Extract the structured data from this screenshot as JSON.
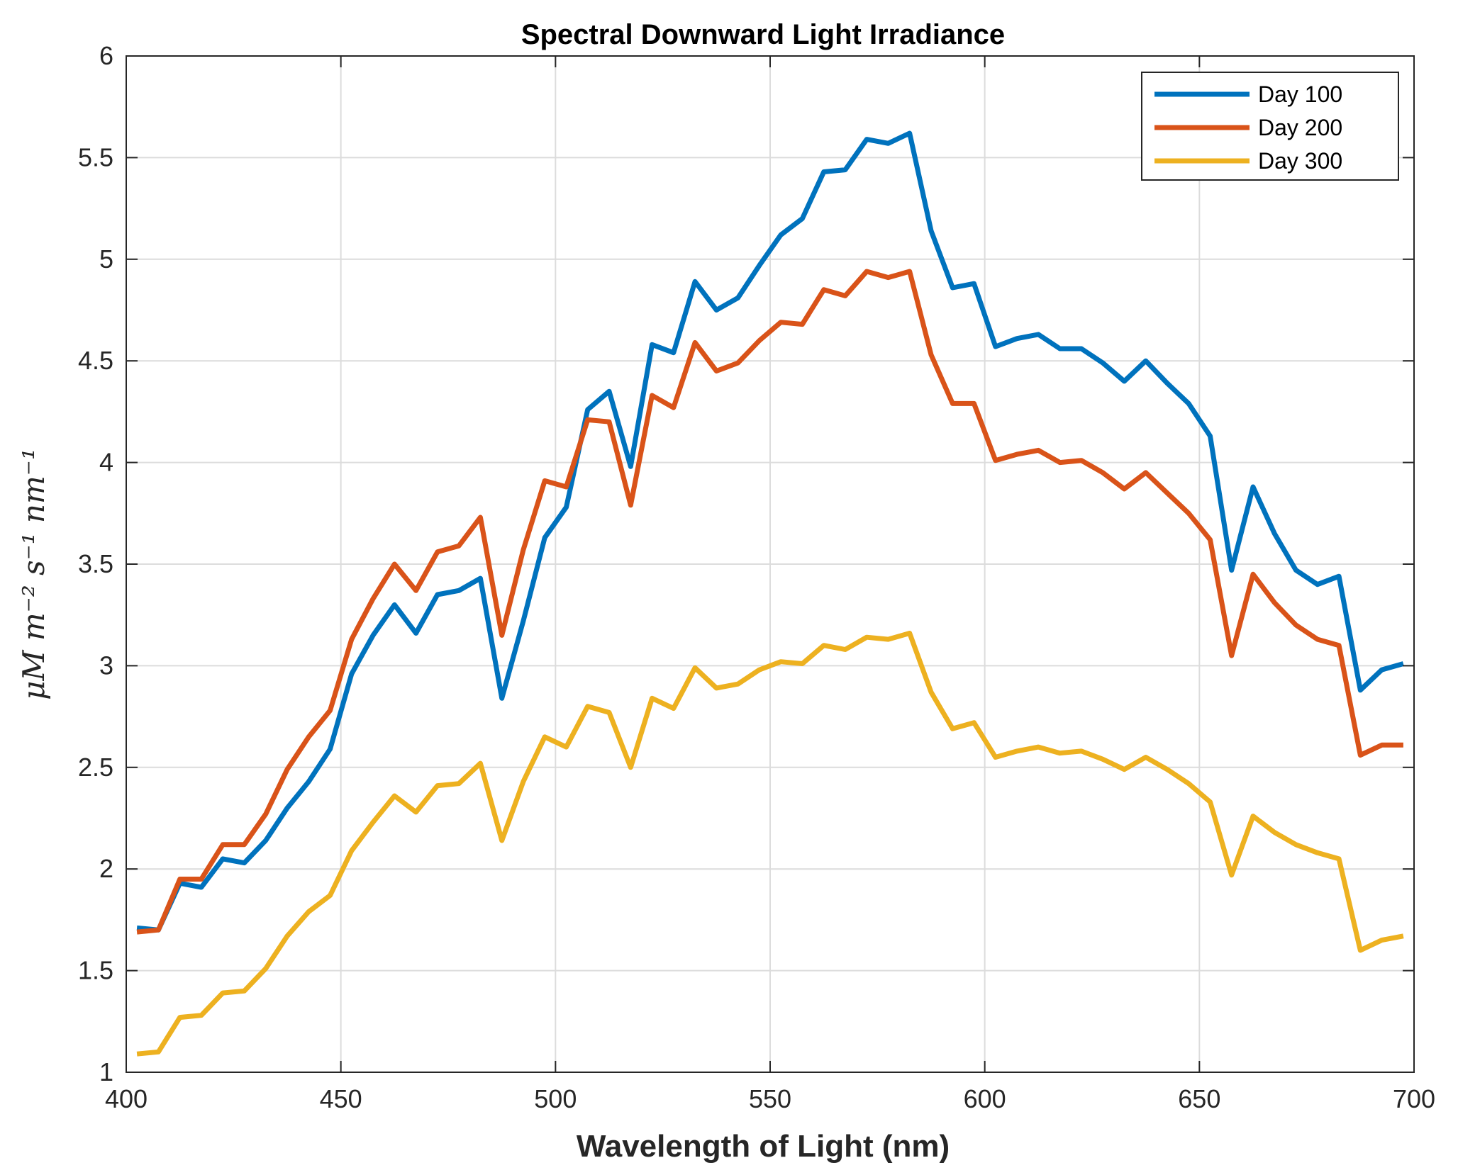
{
  "chart_data": {
    "type": "line",
    "title": "Spectral Downward Light Irradiance",
    "xlabel": "Wavelength of Light (nm)",
    "ylabel": "μM m⁻² s⁻¹ nm⁻¹",
    "xlim": [
      400,
      700
    ],
    "ylim": [
      1,
      6
    ],
    "xticks": [
      400,
      450,
      500,
      550,
      600,
      650,
      700
    ],
    "yticks": [
      1,
      1.5,
      2,
      2.5,
      3,
      3.5,
      4,
      4.5,
      5,
      5.5,
      6
    ],
    "grid": true,
    "legend_position": "top-right",
    "x": [
      402.5,
      407.5,
      412.5,
      417.5,
      422.5,
      427.5,
      432.5,
      437.5,
      442.5,
      447.5,
      452.5,
      457.5,
      462.5,
      467.5,
      472.5,
      477.5,
      482.5,
      487.5,
      492.5,
      497.5,
      502.5,
      507.5,
      512.5,
      517.5,
      522.5,
      527.5,
      532.5,
      537.5,
      542.5,
      547.5,
      552.5,
      557.5,
      562.5,
      567.5,
      572.5,
      577.5,
      582.5,
      587.5,
      592.5,
      597.5,
      602.5,
      607.5,
      612.5,
      617.5,
      622.5,
      627.5,
      632.5,
      637.5,
      642.5,
      647.5,
      652.5,
      657.5,
      662.5,
      667.5,
      672.5,
      677.5,
      682.5,
      687.5,
      692.5,
      697.5
    ],
    "series": [
      {
        "name": "Day 100",
        "color": "#0072BD",
        "values": [
          1.71,
          1.7,
          1.93,
          1.91,
          2.05,
          2.03,
          2.14,
          2.3,
          2.43,
          2.59,
          2.96,
          3.15,
          3.3,
          3.16,
          3.35,
          3.37,
          3.43,
          2.84,
          3.22,
          3.63,
          3.78,
          4.26,
          4.35,
          3.98,
          4.58,
          4.54,
          4.89,
          4.75,
          4.81,
          4.97,
          5.12,
          5.2,
          5.43,
          5.44,
          5.59,
          5.57,
          5.62,
          5.14,
          4.86,
          4.88,
          4.57,
          4.61,
          4.63,
          4.56,
          4.56,
          4.49,
          4.4,
          4.5,
          4.39,
          4.29,
          4.13,
          3.47,
          3.88,
          3.65,
          3.47,
          3.4,
          3.44,
          2.88,
          2.98,
          3.01
        ]
      },
      {
        "name": "Day 200",
        "color": "#D95319",
        "values": [
          1.69,
          1.7,
          1.95,
          1.95,
          2.12,
          2.12,
          2.27,
          2.49,
          2.65,
          2.78,
          3.13,
          3.33,
          3.5,
          3.37,
          3.56,
          3.59,
          3.73,
          3.15,
          3.57,
          3.91,
          3.88,
          4.21,
          4.2,
          3.79,
          4.33,
          4.27,
          4.59,
          4.45,
          4.49,
          4.6,
          4.69,
          4.68,
          4.85,
          4.82,
          4.94,
          4.91,
          4.94,
          4.53,
          4.29,
          4.29,
          4.01,
          4.04,
          4.06,
          4.0,
          4.01,
          3.95,
          3.87,
          3.95,
          3.85,
          3.75,
          3.62,
          3.05,
          3.45,
          3.31,
          3.2,
          3.13,
          3.1,
          2.56,
          2.61,
          2.61
        ]
      },
      {
        "name": "Day 300",
        "color": "#EDB120",
        "values": [
          1.09,
          1.1,
          1.27,
          1.28,
          1.39,
          1.4,
          1.51,
          1.67,
          1.79,
          1.87,
          2.09,
          2.23,
          2.36,
          2.28,
          2.41,
          2.42,
          2.52,
          2.14,
          2.43,
          2.65,
          2.6,
          2.8,
          2.77,
          2.5,
          2.84,
          2.79,
          2.99,
          2.89,
          2.91,
          2.98,
          3.02,
          3.01,
          3.1,
          3.08,
          3.14,
          3.13,
          3.16,
          2.87,
          2.69,
          2.72,
          2.55,
          2.58,
          2.6,
          2.57,
          2.58,
          2.54,
          2.49,
          2.55,
          2.49,
          2.42,
          2.33,
          1.97,
          2.26,
          2.18,
          2.12,
          2.08,
          2.05,
          1.6,
          1.65,
          1.67
        ]
      }
    ]
  }
}
